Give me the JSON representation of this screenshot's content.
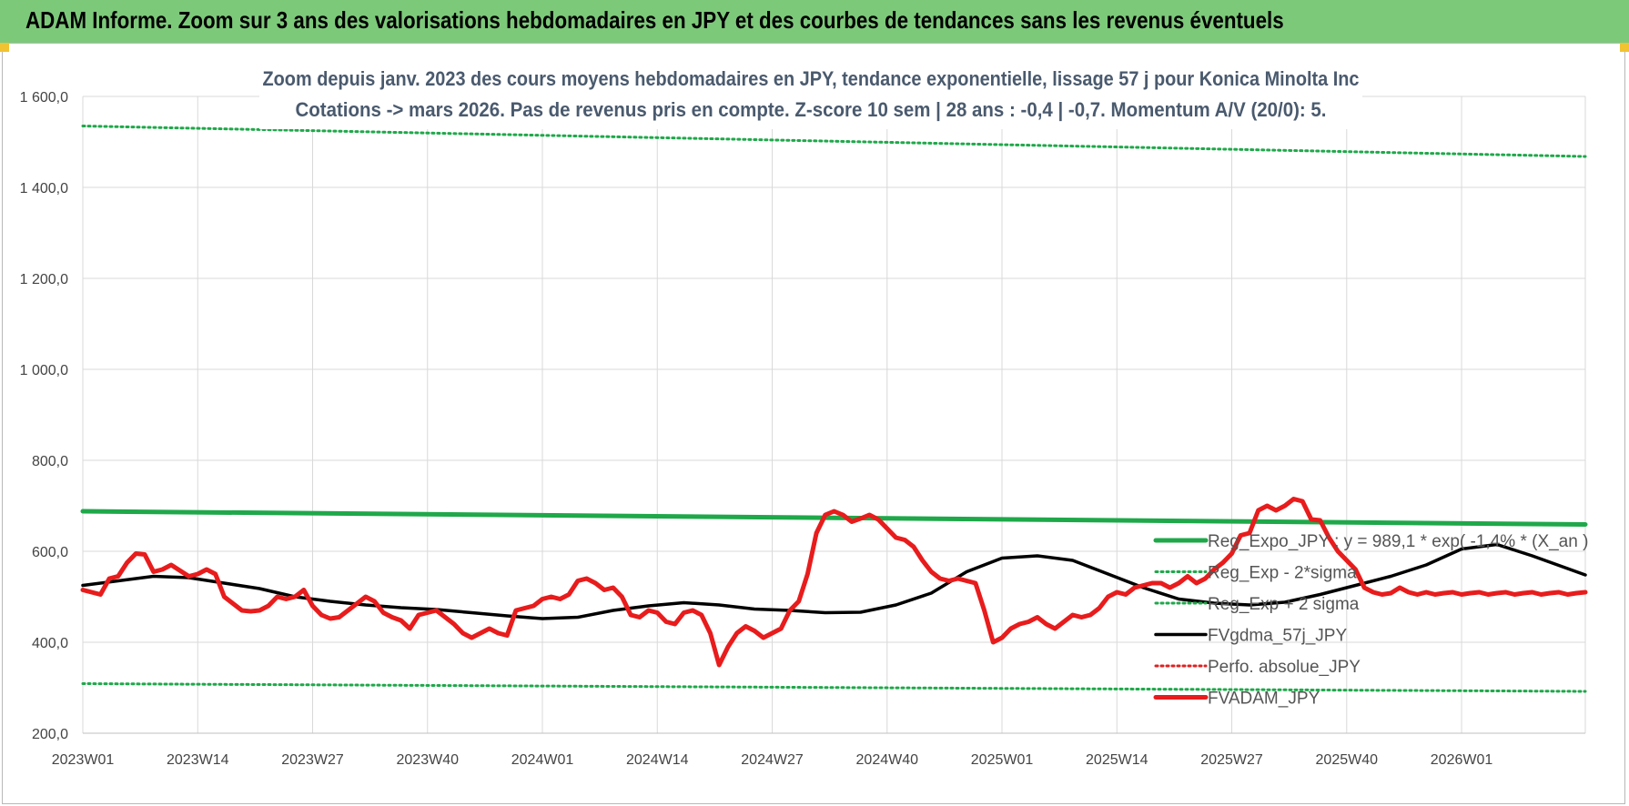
{
  "banner": {
    "title": "ADAM Informe. Zoom sur 3 ans des valorisations hebdomadaires en JPY et des courbes de tendances sans les revenus éventuels"
  },
  "chart_data": {
    "type": "line",
    "title": [
      "Zoom depuis janv. 2023 des cours moyens hebdomadaires en JPY, tendance exponentielle, lissage 57 j pour Konica Minolta Inc",
      "Cotations -> mars 2026. Pas de revenus pris en compte. Z-score 10 sem | 28 ans : -0,4 | -0,7. Momentum A/V (20/0): 5."
    ],
    "ylim": [
      200,
      1600
    ],
    "y_ticks": [
      200,
      400,
      600,
      800,
      1000,
      1200,
      1400,
      1600
    ],
    "y_tick_labels": [
      "200,0",
      "400,0",
      "600,0",
      "800,0",
      "1 000,0",
      "1 200,0",
      "1 400,0",
      "1 600,0"
    ],
    "x_range": [
      0,
      170
    ],
    "x_ticks": [
      0,
      13,
      26,
      39,
      52,
      65,
      78,
      91,
      104,
      117,
      130,
      143,
      156
    ],
    "x_tick_labels": [
      "2023W01",
      "2023W14",
      "2023W27",
      "2023W40",
      "2024W01",
      "2024W14",
      "2024W27",
      "2024W40",
      "2025W01",
      "2025W14",
      "2025W27",
      "2025W40",
      "2026W01"
    ],
    "grid": true,
    "legend_position": "right",
    "series": [
      {
        "name": "Reg_Expo_JPY : y = 989,1 * exp( -1,4% * (X_an )",
        "color": "#1fa84a",
        "style": "solid-thick",
        "x": [
          0,
          170
        ],
        "values": [
          688,
          659
        ]
      },
      {
        "name": "Reg_Exp - 2*sigma",
        "color": "#1fa84a",
        "style": "dotted",
        "x": [
          0,
          170
        ],
        "values": [
          309,
          292
        ]
      },
      {
        "name": "Reg_Exp + 2 sigma",
        "color": "#1fa84a",
        "style": "dotted",
        "x": [
          0,
          170
        ],
        "values": [
          1535,
          1468
        ]
      },
      {
        "name": "FVgdma_57j_JPY",
        "color": "#000000",
        "style": "solid",
        "x": [
          0,
          4,
          8,
          12,
          16,
          20,
          24,
          28,
          32,
          36,
          40,
          44,
          48,
          52,
          56,
          60,
          64,
          68,
          72,
          76,
          80,
          84,
          88,
          92,
          96,
          100,
          104,
          108,
          112,
          116,
          120,
          124,
          128,
          132,
          136,
          140,
          144,
          148,
          152,
          156,
          160,
          164,
          170
        ],
        "values": [
          525,
          535,
          545,
          542,
          530,
          518,
          500,
          490,
          482,
          476,
          472,
          465,
          458,
          452,
          455,
          470,
          480,
          487,
          482,
          473,
          470,
          465,
          466,
          482,
          508,
          555,
          585,
          590,
          580,
          550,
          520,
          495,
          486,
          482,
          488,
          505,
          525,
          545,
          570,
          605,
          615,
          590,
          548
        ]
      },
      {
        "name": "Perfo. absolue_JPY",
        "color": "#e02020",
        "style": "dotted",
        "x": [],
        "values": []
      },
      {
        "name": "FVADAM_JPY",
        "color": "#e81c1c",
        "style": "solid-thick",
        "x": [
          0,
          2,
          3,
          4,
          5,
          6,
          7,
          8,
          9,
          10,
          12,
          13,
          14,
          15,
          16,
          17,
          18,
          19,
          20,
          21,
          22,
          23,
          24,
          25,
          26,
          27,
          28,
          29,
          30,
          31,
          32,
          33,
          34,
          35,
          36,
          37,
          38,
          39,
          40,
          41,
          42,
          43,
          44,
          45,
          46,
          47,
          48,
          49,
          50,
          51,
          52,
          53,
          54,
          55,
          56,
          57,
          58,
          59,
          60,
          61,
          62,
          63,
          64,
          65,
          66,
          67,
          68,
          69,
          70,
          71,
          72,
          73,
          74,
          75,
          76,
          77,
          78,
          79,
          80,
          81,
          82,
          83,
          84,
          85,
          86,
          87,
          88,
          89,
          90,
          91,
          92,
          93,
          94,
          95,
          96,
          97,
          98,
          99,
          100,
          101,
          102,
          103,
          104,
          105,
          106,
          107,
          108,
          109,
          110,
          111,
          112,
          113,
          114,
          115,
          116,
          117,
          118,
          119,
          120,
          121,
          122,
          123,
          124,
          125,
          126,
          127,
          128,
          129,
          130,
          131,
          132,
          133,
          134,
          135,
          136,
          137,
          138,
          139,
          140,
          141,
          142,
          143,
          144,
          145,
          146,
          147,
          148,
          149,
          150,
          151,
          152,
          153,
          154,
          155,
          156,
          157,
          158,
          159,
          160,
          161,
          162,
          163,
          164,
          165,
          166,
          167,
          168,
          169,
          170
        ],
        "values": [
          515,
          505,
          540,
          545,
          575,
          595,
          593,
          555,
          560,
          570,
          545,
          550,
          560,
          550,
          500,
          485,
          470,
          468,
          470,
          480,
          500,
          495,
          500,
          515,
          480,
          460,
          452,
          455,
          470,
          485,
          500,
          490,
          465,
          455,
          448,
          430,
          460,
          465,
          470,
          455,
          440,
          420,
          410,
          420,
          430,
          420,
          415,
          470,
          475,
          480,
          495,
          500,
          495,
          505,
          535,
          540,
          530,
          515,
          520,
          500,
          460,
          455,
          470,
          465,
          445,
          440,
          465,
          470,
          460,
          420,
          350,
          390,
          420,
          435,
          425,
          410,
          420,
          430,
          470,
          490,
          550,
          640,
          680,
          688,
          680,
          665,
          672,
          680,
          670,
          650,
          630,
          625,
          610,
          580,
          555,
          540,
          535,
          540,
          535,
          530,
          470,
          400,
          410,
          430,
          440,
          445,
          455,
          440,
          430,
          445,
          460,
          455,
          460,
          475,
          500,
          510,
          505,
          520,
          525,
          530,
          530,
          520,
          530,
          545,
          530,
          540,
          560,
          575,
          595,
          635,
          640,
          690,
          700,
          690,
          700,
          715,
          710,
          670,
          668,
          630,
          600,
          580,
          560,
          520,
          510,
          505,
          508,
          520,
          510,
          505,
          510,
          505,
          508,
          510,
          505,
          508,
          510,
          505,
          508,
          510,
          505,
          508,
          510,
          505,
          508,
          510,
          505,
          508,
          510
        ]
      }
    ]
  }
}
